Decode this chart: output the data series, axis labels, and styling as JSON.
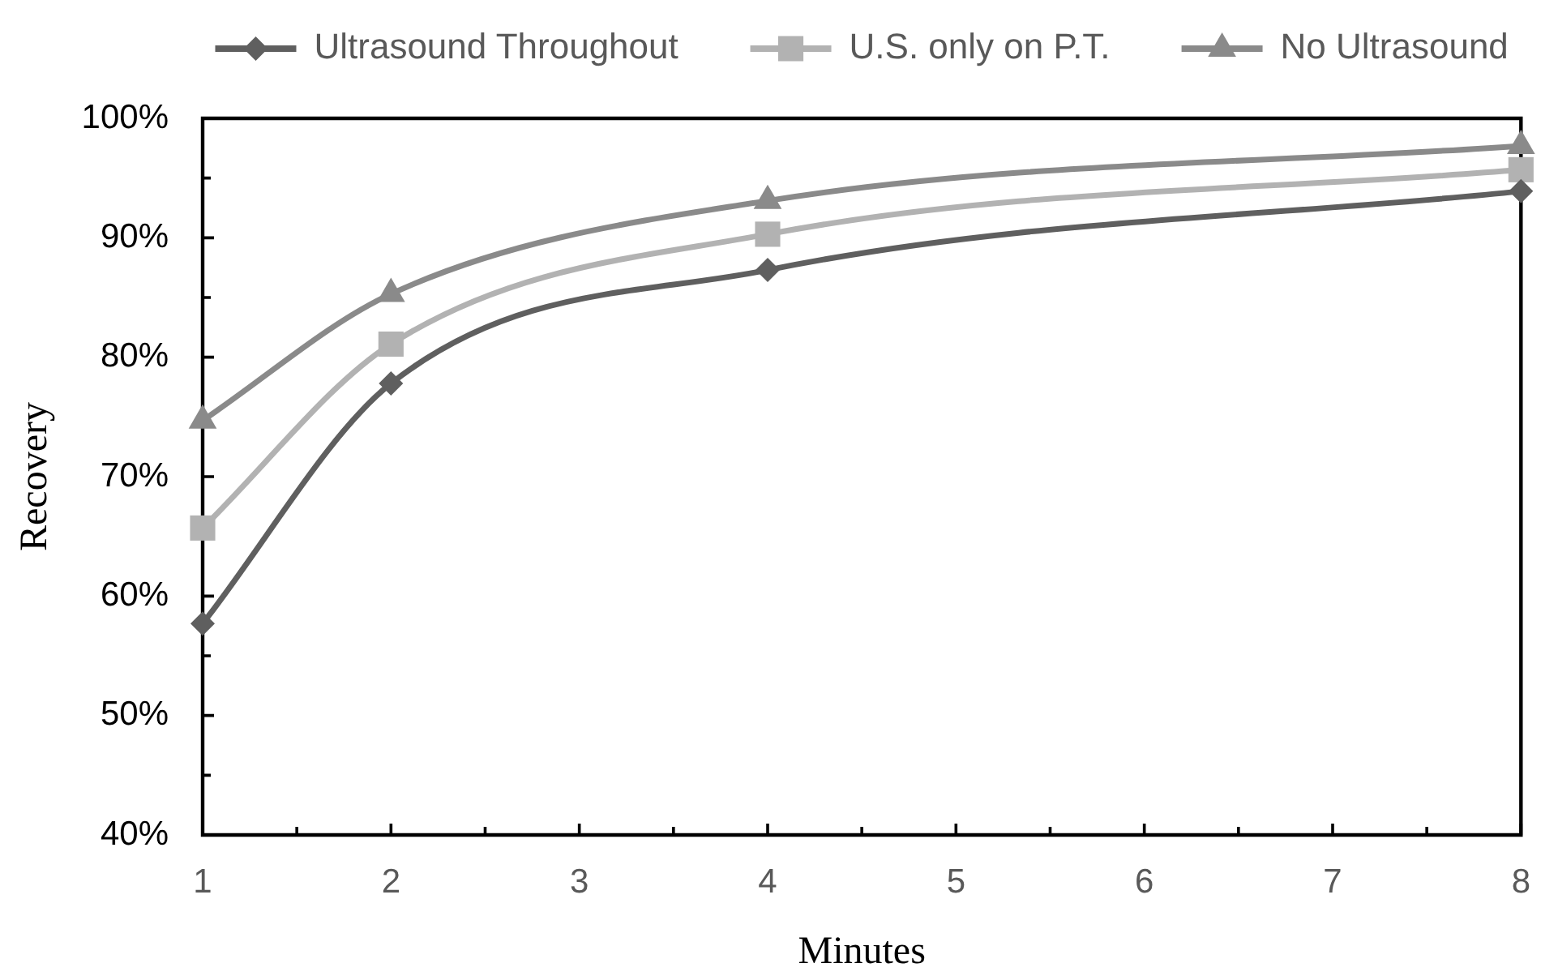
{
  "chart_data": {
    "type": "line",
    "xlabel": "Minutes",
    "ylabel": "Recovery",
    "x": [
      1,
      2,
      4,
      8
    ],
    "series": [
      {
        "name": "Ultrasound Throughout",
        "color": "#5f5f5f",
        "marker": "diamond",
        "values": [
          57.7,
          77.8,
          87.3,
          93.9
        ]
      },
      {
        "name": "U.S. only on P.T.",
        "color": "#b2b2b2",
        "marker": "square",
        "values": [
          65.7,
          81.1,
          90.3,
          95.7
        ]
      },
      {
        "name": "No Ultrasound",
        "color": "#8a8a8a",
        "marker": "triangle",
        "values": [
          74.7,
          85.3,
          93.1,
          97.7
        ]
      }
    ],
    "xlim": [
      1,
      8
    ],
    "xticks": [
      1,
      {
        "value": 1.5,
        "label": null
      },
      2,
      {
        "value": 2.5,
        "label": null
      },
      3,
      {
        "value": 3.5,
        "label": null
      },
      4,
      {
        "value": 4.5,
        "label": null
      },
      5,
      {
        "value": 5.5,
        "label": null
      },
      6,
      {
        "value": 6.5,
        "label": null
      },
      7,
      {
        "value": 7.5,
        "label": null
      },
      8
    ],
    "ylim": [
      40,
      100
    ],
    "yticks": [
      {
        "value": 40,
        "label": "40%"
      },
      {
        "value": 45,
        "label": null
      },
      {
        "value": 50,
        "label": "50%"
      },
      {
        "value": 55,
        "label": null
      },
      {
        "value": 60,
        "label": "60%"
      },
      {
        "value": 65,
        "label": null
      },
      {
        "value": 70,
        "label": "70%"
      },
      {
        "value": 75,
        "label": null
      },
      {
        "value": 80,
        "label": "80%"
      },
      {
        "value": 85,
        "label": null
      },
      {
        "value": 90,
        "label": "90%"
      },
      {
        "value": 95,
        "label": null
      },
      {
        "value": 100,
        "label": "100%"
      }
    ],
    "legend": "top",
    "grid": false,
    "line_style": "solid"
  }
}
